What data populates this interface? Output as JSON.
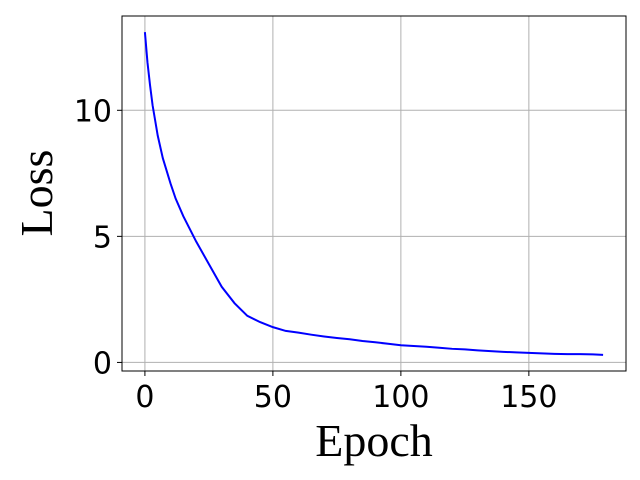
{
  "chart_data": {
    "type": "line",
    "x_label": "Epoch",
    "y_label": "Loss",
    "x": [
      0,
      1,
      2,
      3,
      4,
      5,
      7,
      10,
      12,
      15,
      18,
      20,
      25,
      30,
      35,
      40,
      45,
      50,
      55,
      60,
      65,
      70,
      75,
      80,
      85,
      90,
      95,
      100,
      105,
      110,
      115,
      120,
      125,
      130,
      135,
      140,
      145,
      150,
      155,
      160,
      165,
      170,
      175,
      179
    ],
    "series": [
      {
        "color": "#0000ff",
        "values": [
          13.1,
          11.9,
          11.0,
          10.2,
          9.6,
          9.0,
          8.1,
          7.1,
          6.5,
          5.8,
          5.2,
          4.8,
          3.9,
          3.0,
          2.35,
          1.85,
          1.6,
          1.4,
          1.25,
          1.18,
          1.1,
          1.03,
          0.97,
          0.92,
          0.85,
          0.8,
          0.74,
          0.68,
          0.65,
          0.62,
          0.58,
          0.54,
          0.52,
          0.48,
          0.45,
          0.42,
          0.4,
          0.38,
          0.36,
          0.34,
          0.33,
          0.33,
          0.32,
          0.3
        ]
      }
    ],
    "xlim": [
      -8.95,
      187.95
    ],
    "ylim": [
      -0.34,
      13.74
    ],
    "xticks": [
      0,
      50,
      100,
      150
    ],
    "yticks": [
      0,
      5,
      10
    ],
    "grid": true
  }
}
